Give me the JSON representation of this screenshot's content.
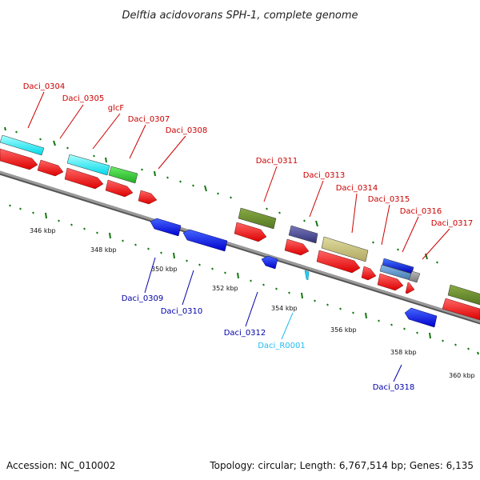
{
  "title": "Delftia acidovorans SPH-1, complete genome",
  "footer": {
    "accession": "Accession: NC_010002",
    "summary": "Topology: circular; Length: 6,767,514 bp; Genes: 6,135"
  },
  "colors": {
    "forward_label": "#cc0000",
    "reverse_label": "#0000aa",
    "rna_label": "#22bbee",
    "cds": "#ee1111",
    "backbone": "#888888",
    "tick_mark": "#117711"
  },
  "ticks": [
    "346 kbp",
    "348 kbp",
    "350 kbp",
    "352 kbp",
    "354 kbp",
    "356 kbp",
    "358 kbp",
    "360 kbp"
  ],
  "forward_genes": [
    "Daci_0304",
    "Daci_0305",
    "glcF",
    "Daci_0307",
    "Daci_0308",
    "Daci_0311",
    "Daci_0313",
    "Daci_0314",
    "Daci_0315",
    "Daci_0316",
    "Daci_0317"
  ],
  "reverse_genes": [
    "Daci_0309",
    "Daci_0310",
    "Daci_0312",
    "Daci_0318"
  ],
  "rna_genes": [
    "Daci_R0001"
  ]
}
